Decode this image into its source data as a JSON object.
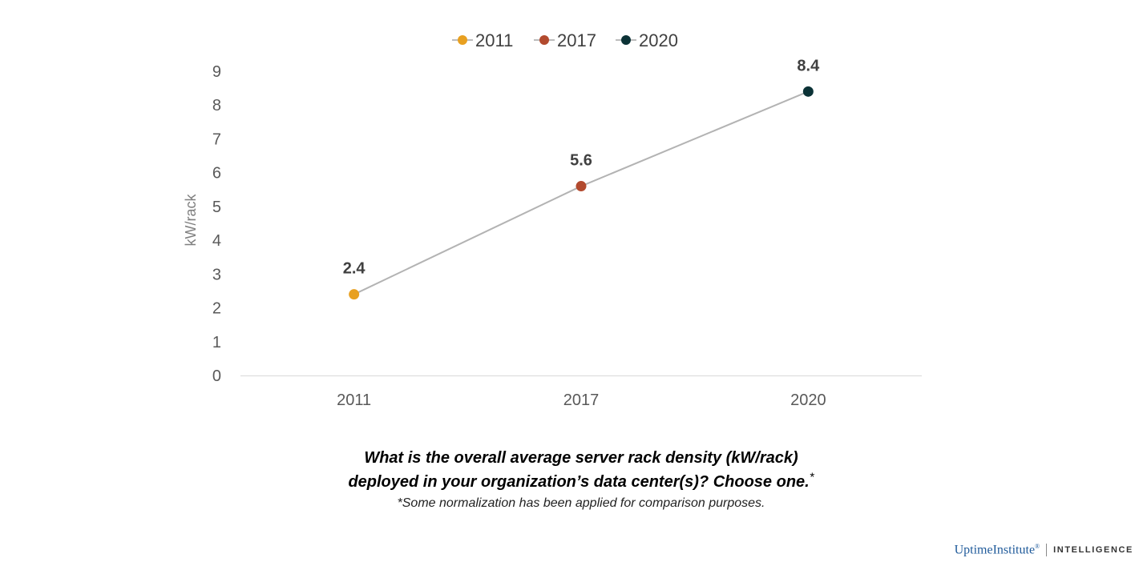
{
  "chart_data": {
    "type": "line",
    "categories": [
      "2011",
      "2017",
      "2020"
    ],
    "values": [
      2.4,
      5.6,
      8.4
    ],
    "data_labels": [
      "2.4",
      "5.6",
      "8.4"
    ],
    "point_colors": [
      "#e8a020",
      "#b24a2e",
      "#0b3236"
    ],
    "line_color": "#b3b3b3",
    "legend": {
      "position": "top",
      "entries": [
        {
          "label": "2011",
          "color": "#e8a020"
        },
        {
          "label": "2017",
          "color": "#b24a2e"
        },
        {
          "label": "2020",
          "color": "#0b3236"
        }
      ]
    },
    "title": "",
    "xlabel": "",
    "ylabel": "kW/rack",
    "ylim": [
      0,
      9
    ],
    "yticks": [
      "0",
      "1",
      "2",
      "3",
      "4",
      "5",
      "6",
      "7",
      "8",
      "9"
    ],
    "grid": false
  },
  "caption": {
    "question_line1": "What is the overall average server rack density (kW/rack)",
    "question_line2": "deployed in your organization’s data center(s)? Choose one.",
    "question_marker": "*",
    "footnote": "*Some normalization has been applied for comparison purposes."
  },
  "brand": {
    "name": "UptimeInstitute",
    "registered": "®",
    "unit": "INTELLIGENCE",
    "color": "#1f5a9a"
  }
}
